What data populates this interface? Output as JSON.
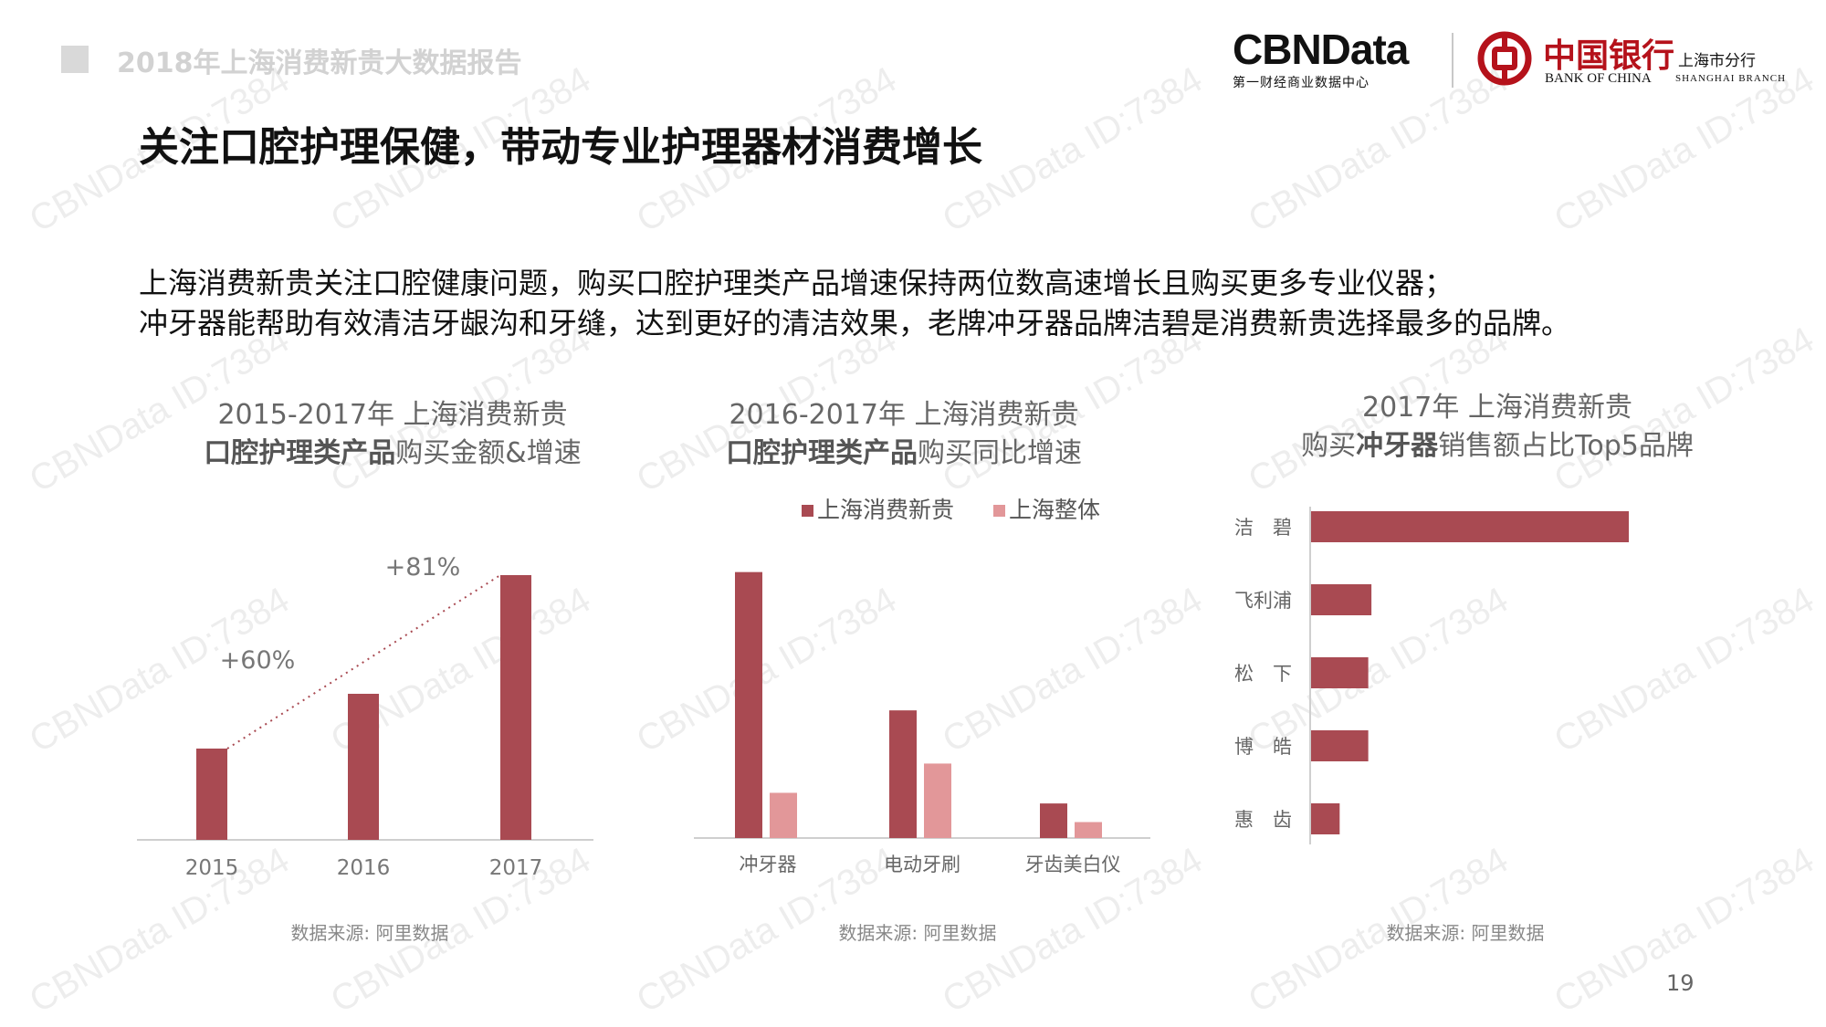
{
  "header": {
    "report_title": "2018年上海消费新贵大数据报告",
    "cbn_logo": "CBNData",
    "cbn_sub": "第一财经商业数据中心",
    "boc_cn": "中国银行",
    "boc_en": "BANK OF CHINA",
    "boc_branch_cn": "上海市分行",
    "boc_branch_en": "SHANGHAI BRANCH"
  },
  "page_title": "关注口腔护理保健，带动专业护理器材消费增长",
  "description": [
    "上海消费新贵关注口腔健康问题，购买口腔护理类产品增速保持两位数高速增长且购买更多专业仪器；",
    "冲牙器能帮助有效清洁牙龈沟和牙缝，达到更好的清洁效果，老牌冲牙器品牌洁碧是消费新贵选择最多的品牌。"
  ],
  "charts": {
    "c1": {
      "title_line1": "2015-2017年 上海消费新贵",
      "title_bold": "口腔护理类产品",
      "title_rest": "购买金额&增速",
      "source": "数据来源: 阿里数据"
    },
    "c2": {
      "title_line1": "2016-2017年 上海消费新贵",
      "title_bold": "口腔护理类产品",
      "title_rest": "购买同比增速",
      "source": "数据来源: 阿里数据"
    },
    "c3": {
      "title_line1": "2017年 上海消费新贵",
      "title_pre": "购买",
      "title_bold": "冲牙器",
      "title_rest": "销售额占比Top5品牌",
      "source": "数据来源: 阿里数据"
    }
  },
  "chart_data": [
    {
      "type": "bar",
      "categories": [
        "2015",
        "2016",
        "2017"
      ],
      "values": [
        1.0,
        1.6,
        2.9
      ],
      "annotations": [
        "+60%",
        "+81%"
      ],
      "ylim": [
        0,
        3.4
      ],
      "color": "#a94a52",
      "grid": false
    },
    {
      "type": "bar",
      "categories": [
        "冲牙器",
        "电动牙刷",
        "牙齿美白仪"
      ],
      "series": [
        {
          "name": "上海消费新贵",
          "values": [
            100,
            48,
            13
          ],
          "color": "#a94a52"
        },
        {
          "name": "上海整体",
          "values": [
            17,
            28,
            6
          ],
          "color": "#e29799"
        }
      ],
      "legend": "top",
      "ylim": [
        0,
        104
      ],
      "grid": false
    },
    {
      "type": "bar",
      "orientation": "horizontal",
      "categories": [
        "洁　碧",
        "飞利浦",
        "松　下",
        "博　皓",
        "惠　齿"
      ],
      "values": [
        100,
        19,
        18,
        18,
        9
      ],
      "xlim": [
        0,
        100
      ],
      "color": "#a94a52",
      "grid": false
    }
  ],
  "page_number": "19",
  "watermark": "CBNData ID:7384"
}
